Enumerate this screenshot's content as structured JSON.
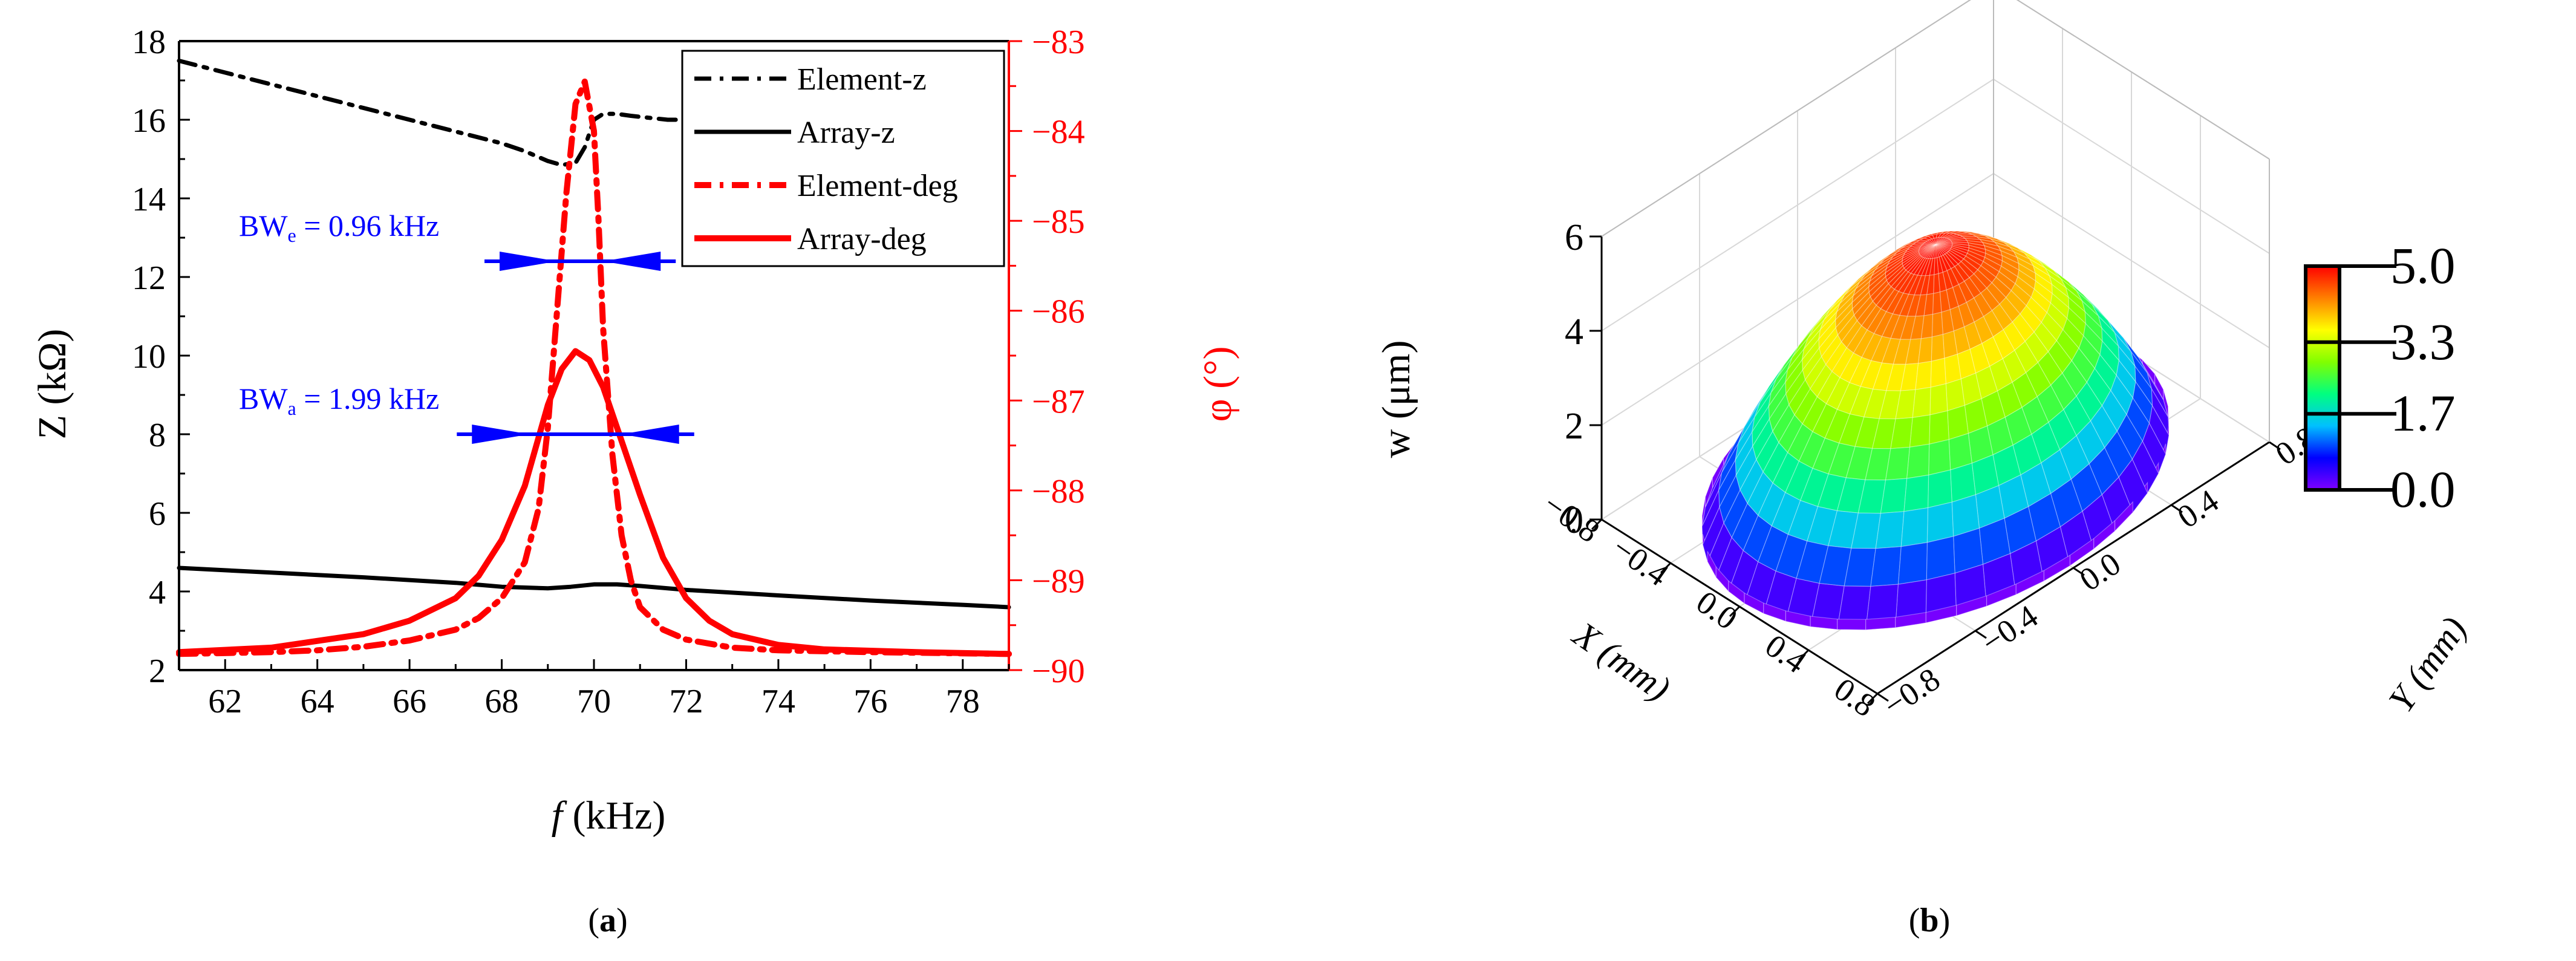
{
  "colors": {
    "black": "#000000",
    "red": "#ff0000",
    "blue": "#0000ff"
  },
  "panel_labels": {
    "a_open": "(",
    "a_letter": "a",
    "a_close": ")",
    "b_open": "(",
    "b_letter": "b",
    "b_close": ")"
  },
  "chart_data": [
    {
      "type": "line",
      "xlabel_italic": "f",
      "xlabel_rest": " (kHz)",
      "ylabel": "Z (kΩ)",
      "y2label": "φ (°)",
      "xlim": [
        61,
        79
      ],
      "ylim": [
        2,
        18
      ],
      "y2lim": [
        -90,
        -83
      ],
      "xticks": [
        "62",
        "64",
        "66",
        "68",
        "70",
        "72",
        "74",
        "76",
        "78"
      ],
      "yticks": [
        "2",
        "4",
        "6",
        "8",
        "10",
        "12",
        "14",
        "16",
        "18"
      ],
      "y2ticks": [
        "−90",
        "−89",
        "−88",
        "−87",
        "−86",
        "−85",
        "−84",
        "−83"
      ],
      "legend": [
        "Element-z",
        "Array-z",
        "Element-deg",
        "Array-deg"
      ],
      "legend_position": "top-right",
      "series": [
        {
          "name": "Element-z",
          "axis": "left",
          "style": "dashdot",
          "color": "#000000",
          "x": [
            61,
            62,
            63,
            64,
            65,
            66,
            67,
            68,
            68.5,
            69,
            69.3,
            69.6,
            69.8,
            70,
            70.2,
            70.5,
            70.8,
            71.2,
            71.6,
            72
          ],
          "y": [
            17.5,
            17.2,
            16.9,
            16.6,
            16.3,
            16.0,
            15.7,
            15.4,
            15.2,
            14.95,
            14.85,
            14.9,
            15.3,
            16.0,
            16.15,
            16.15,
            16.1,
            16.05,
            16.0,
            16.0
          ]
        },
        {
          "name": "Array-z",
          "axis": "left",
          "style": "solid",
          "color": "#000000",
          "x": [
            61,
            63,
            65,
            67,
            68,
            69,
            69.5,
            70,
            70.5,
            71,
            72,
            74,
            76,
            78,
            79
          ],
          "y": [
            4.6,
            4.48,
            4.36,
            4.22,
            4.12,
            4.08,
            4.12,
            4.18,
            4.18,
            4.14,
            4.04,
            3.9,
            3.77,
            3.66,
            3.6
          ]
        },
        {
          "name": "Element-deg",
          "axis": "right",
          "style": "dashdot",
          "color": "#ff0000",
          "x": [
            61,
            63,
            64,
            65,
            66,
            67,
            67.5,
            68,
            68.5,
            68.8,
            69.0,
            69.2,
            69.4,
            69.6,
            69.8,
            70.0,
            70.1,
            70.2,
            70.4,
            70.6,
            70.8,
            71,
            71.5,
            72,
            73,
            74,
            76,
            79
          ],
          "y": [
            -89.82,
            -89.8,
            -89.78,
            -89.74,
            -89.67,
            -89.55,
            -89.42,
            -89.2,
            -88.8,
            -88.2,
            -87.3,
            -86.0,
            -84.7,
            -83.7,
            -83.45,
            -84.0,
            -85.0,
            -86.2,
            -87.6,
            -88.5,
            -89.0,
            -89.3,
            -89.55,
            -89.66,
            -89.75,
            -89.78,
            -89.8,
            -89.82
          ]
        },
        {
          "name": "Array-deg",
          "axis": "right",
          "style": "solid",
          "color": "#ff0000",
          "x": [
            61,
            63,
            65,
            66,
            67,
            67.5,
            68,
            68.5,
            69,
            69.3,
            69.6,
            69.9,
            70.2,
            70.5,
            71,
            71.5,
            72,
            72.5,
            73,
            74,
            75,
            77,
            79
          ],
          "y": [
            -89.8,
            -89.75,
            -89.6,
            -89.45,
            -89.2,
            -88.95,
            -88.55,
            -87.95,
            -87.05,
            -86.65,
            -86.45,
            -86.55,
            -86.85,
            -87.3,
            -88.05,
            -88.75,
            -89.2,
            -89.45,
            -89.6,
            -89.72,
            -89.77,
            -89.8,
            -89.82
          ]
        }
      ],
      "annotations": [
        {
          "text_main": "BW",
          "text_sub": "e",
          "text_rest": " = 0.96 kHz",
          "color": "#0000ff",
          "y": 12.4,
          "x_from": 69.2,
          "x_to": 70.2
        },
        {
          "text_main": "BW",
          "text_sub": "a",
          "text_rest": " = 1.99 kHz",
          "color": "#0000ff",
          "y": 8.0,
          "x_from": 68.6,
          "x_to": 70.6
        }
      ]
    },
    {
      "type": "surface3d",
      "zlabel": "w (μm)",
      "xlabel": "X (mm)",
      "ylabel": "Y (mm)",
      "zticks": [
        "0",
        "2",
        "4",
        "6"
      ],
      "xticks": [
        "−0.8",
        "−0.4",
        "0.0",
        "0.4",
        "0.8"
      ],
      "yticks": [
        "−0.8",
        "−0.4",
        "0.0",
        "0.4",
        "0.8"
      ],
      "zlim": [
        0,
        6
      ],
      "peak": 5.0,
      "colorbar": {
        "ticks": [
          "5.0",
          "3.3",
          "1.7",
          "0.0"
        ],
        "min": 0.0,
        "max": 5.0,
        "colors": [
          "#8000ff",
          "#0000ff",
          "#00c0ff",
          "#00ff80",
          "#80ff00",
          "#ffff00",
          "#ff8000",
          "#ff0000"
        ]
      }
    }
  ]
}
